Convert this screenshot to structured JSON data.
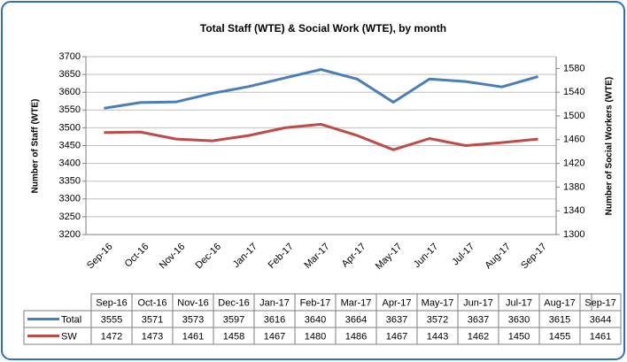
{
  "chart_data": {
    "type": "line",
    "title": "Total Staff (WTE) & Social Work (WTE), by month",
    "y_label": "Number of Staff (WTE)",
    "y2_label": "Number of Social Workers (WTE)",
    "categories": [
      "Sep-16",
      "Oct-16",
      "Nov-16",
      "Dec-16",
      "Jan-17",
      "Feb-17",
      "Mar-17",
      "Apr-17",
      "May-17",
      "Jun-17",
      "Jul-17",
      "Aug-17",
      "Sep-17"
    ],
    "series": [
      {
        "name": "Total",
        "color": "#4a7ebb",
        "values": [
          3555,
          3571,
          3573,
          3597,
          3616,
          3640,
          3664,
          3637,
          3572,
          3637,
          3630,
          3615,
          3644
        ]
      },
      {
        "name": "SW",
        "color": "#be4b48",
        "axis": "y2",
        "values": [
          1472,
          1473,
          1461,
          1458,
          1467,
          1480,
          1486,
          1467,
          1443,
          1462,
          1450,
          1455,
          1461
        ]
      }
    ],
    "ylim": [
      3200,
      3700
    ],
    "yticks": [
      3200,
      3250,
      3300,
      3350,
      3400,
      3450,
      3500,
      3550,
      3600,
      3650,
      3700
    ],
    "y2lim": [
      1300,
      1600
    ],
    "y2ticks": [
      1300,
      1340,
      1380,
      1420,
      1460,
      1500,
      1540,
      1580
    ],
    "grid": true,
    "data_table": true
  }
}
